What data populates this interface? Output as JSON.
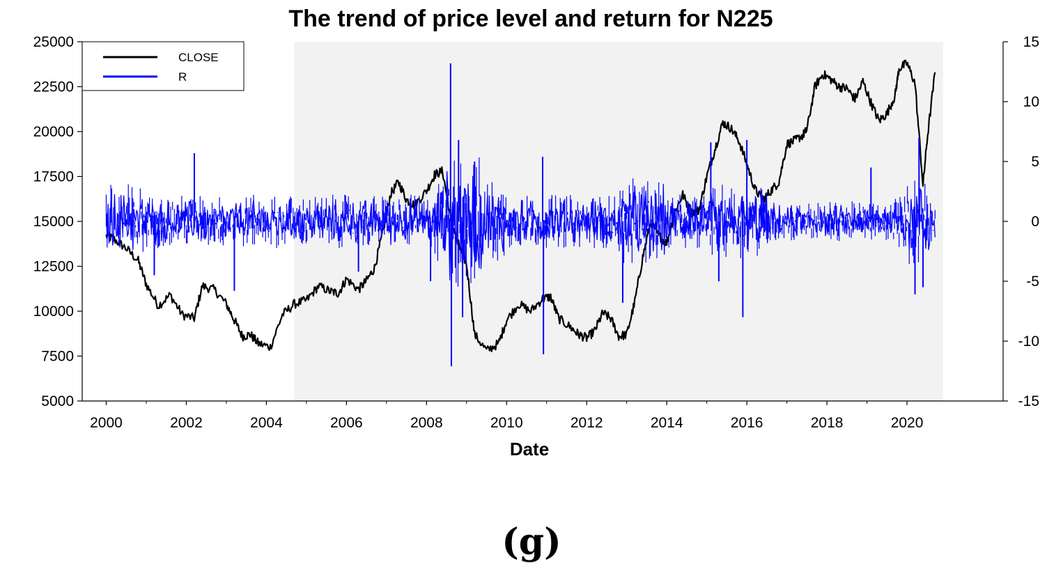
{
  "chart_data": {
    "type": "line",
    "title": "The trend of price level and return for N225",
    "xlabel": "Date",
    "ylabel_left": "",
    "ylabel_right": "",
    "xlim": [
      1999.4,
      2022.4
    ],
    "ylim_left": [
      5000,
      25000
    ],
    "ylim_right": [
      -15,
      15
    ],
    "x_ticks": [
      "2000",
      "2002",
      "2004",
      "2006",
      "2008",
      "2010",
      "2012",
      "2014",
      "2016",
      "2018",
      "2020"
    ],
    "y_ticks_left": [
      "25000",
      "22500",
      "20000",
      "17500",
      "15000",
      "12500",
      "10000",
      "7500",
      "5000"
    ],
    "y_ticks_right": [
      "15",
      "10",
      "5",
      "0",
      "-5",
      "-10",
      "-15"
    ],
    "shaded_region": [
      2004.7,
      2020.9
    ],
    "legend": {
      "position": "top-left",
      "entries": [
        {
          "label": "CLOSE",
          "color": "#000000"
        },
        {
          "label": "R",
          "color": "#0000ff"
        }
      ]
    },
    "series": [
      {
        "name": "CLOSE",
        "axis": "left",
        "color": "#000000",
        "x": [
          2000.0,
          2000.2,
          2000.5,
          2000.8,
          2001.0,
          2001.3,
          2001.6,
          2001.9,
          2002.2,
          2002.4,
          2002.7,
          2003.0,
          2003.2,
          2003.4,
          2003.6,
          2003.8,
          2004.1,
          2004.4,
          2004.7,
          2005.0,
          2005.3,
          2005.6,
          2005.8,
          2006.0,
          2006.3,
          2006.5,
          2006.7,
          2006.9,
          2007.1,
          2007.3,
          2007.5,
          2007.7,
          2008.0,
          2008.2,
          2008.4,
          2008.6,
          2008.8,
          2009.0,
          2009.2,
          2009.5,
          2009.8,
          2010.0,
          2010.3,
          2010.6,
          2010.9,
          2011.1,
          2011.3,
          2011.6,
          2011.8,
          2012.0,
          2012.2,
          2012.4,
          2012.6,
          2012.8,
          2013.0,
          2013.2,
          2013.4,
          2013.6,
          2013.8,
          2014.0,
          2014.2,
          2014.4,
          2014.6,
          2014.8,
          2015.0,
          2015.2,
          2015.4,
          2015.6,
          2015.8,
          2016.0,
          2016.2,
          2016.4,
          2016.6,
          2016.8,
          2017.0,
          2017.2,
          2017.4,
          2017.5,
          2017.7,
          2017.9,
          2018.1,
          2018.3,
          2018.5,
          2018.7,
          2018.9,
          2019.1,
          2019.3,
          2019.5,
          2019.7,
          2019.8,
          2020.0,
          2020.2,
          2020.4,
          2020.5,
          2020.7
        ],
        "values": [
          14200,
          14000,
          13500,
          12800,
          11500,
          10300,
          10900,
          9800,
          9600,
          11400,
          11200,
          10400,
          9500,
          8600,
          8700,
          8200,
          8000,
          9800,
          10400,
          10600,
          11400,
          11100,
          11000,
          11800,
          11200,
          11700,
          12400,
          14300,
          16500,
          17200,
          16200,
          15900,
          16700,
          17600,
          17800,
          15200,
          13700,
          12600,
          8700,
          7800,
          8200,
          9500,
          10400,
          10000,
          10700,
          10800,
          9600,
          9100,
          8700,
          8500,
          8900,
          9900,
          9600,
          8600,
          8700,
          10500,
          13000,
          15000,
          14200,
          13800,
          15500,
          16500,
          15500,
          15600,
          17500,
          19000,
          20500,
          20200,
          19500,
          18200,
          16800,
          16200,
          16700,
          17200,
          19300,
          19500,
          19800,
          20100,
          22500,
          23200,
          22900,
          22500,
          22400,
          21800,
          22800,
          21600,
          20600,
          21000,
          22000,
          23500,
          23800,
          22700,
          17000,
          19500,
          23300
        ]
      },
      {
        "name": "R",
        "axis": "right",
        "color": "#0000ff",
        "x_start": 2000.0,
        "x_end": 2020.7,
        "samples": 900,
        "spikes": [
          {
            "x": 2001.2,
            "value": -4.5
          },
          {
            "x": 2002.2,
            "value": 5.7
          },
          {
            "x": 2003.2,
            "value": -5.8
          },
          {
            "x": 2006.3,
            "value": -4.2
          },
          {
            "x": 2008.1,
            "value": -5.0
          },
          {
            "x": 2008.6,
            "value": 13.2
          },
          {
            "x": 2008.62,
            "value": -12.1
          },
          {
            "x": 2008.8,
            "value": 6.8
          },
          {
            "x": 2008.9,
            "value": -8.0
          },
          {
            "x": 2009.2,
            "value": 5.0
          },
          {
            "x": 2010.9,
            "value": 5.4
          },
          {
            "x": 2010.92,
            "value": -11.1
          },
          {
            "x": 2012.9,
            "value": -6.8
          },
          {
            "x": 2015.1,
            "value": 6.6
          },
          {
            "x": 2015.3,
            "value": -5.0
          },
          {
            "x": 2015.9,
            "value": -8.0
          },
          {
            "x": 2016.0,
            "value": 6.8
          },
          {
            "x": 2019.1,
            "value": 4.5
          },
          {
            "x": 2020.2,
            "value": -6.1
          },
          {
            "x": 2020.3,
            "value": 7.0
          },
          {
            "x": 2020.4,
            "value": -5.5
          }
        ]
      }
    ]
  },
  "caption": "(g)"
}
